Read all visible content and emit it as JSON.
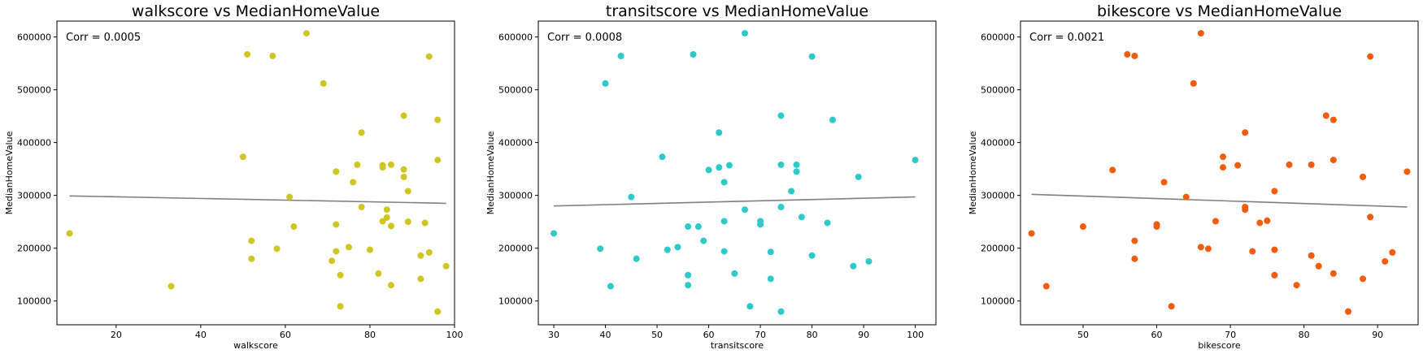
{
  "chart_data": [
    {
      "type": "scatter",
      "title": "walkscore vs MedianHomeValue",
      "xlabel": "walkscore",
      "ylabel": "MedianHomeValue",
      "annotation": "Corr = 0.0005",
      "xlim": [
        6,
        100
      ],
      "ylim": [
        55000,
        630000
      ],
      "xticks": [
        20,
        40,
        60,
        80,
        100
      ],
      "yticks": [
        100000,
        200000,
        300000,
        400000,
        500000,
        600000
      ],
      "point_color": "#cfc623",
      "line_color": "#808080",
      "trend": {
        "x": [
          9,
          98
        ],
        "y": [
          299000,
          285000
        ]
      },
      "points": [
        {
          "x": 9,
          "y": 228000
        },
        {
          "x": 33,
          "y": 128000
        },
        {
          "x": 50,
          "y": 373000
        },
        {
          "x": 51,
          "y": 567000
        },
        {
          "x": 52,
          "y": 214000
        },
        {
          "x": 52,
          "y": 180000
        },
        {
          "x": 57,
          "y": 564000
        },
        {
          "x": 58,
          "y": 199000
        },
        {
          "x": 61,
          "y": 297000
        },
        {
          "x": 62,
          "y": 241000
        },
        {
          "x": 65,
          "y": 607000
        },
        {
          "x": 69,
          "y": 512000
        },
        {
          "x": 71,
          "y": 176000
        },
        {
          "x": 72,
          "y": 345000
        },
        {
          "x": 72,
          "y": 245000
        },
        {
          "x": 72,
          "y": 194000
        },
        {
          "x": 73,
          "y": 149000
        },
        {
          "x": 73,
          "y": 90000
        },
        {
          "x": 75,
          "y": 202000
        },
        {
          "x": 76,
          "y": 325000
        },
        {
          "x": 77,
          "y": 358000
        },
        {
          "x": 78,
          "y": 419000
        },
        {
          "x": 78,
          "y": 278000
        },
        {
          "x": 80,
          "y": 197000
        },
        {
          "x": 82,
          "y": 152000
        },
        {
          "x": 83,
          "y": 357000
        },
        {
          "x": 83,
          "y": 353000
        },
        {
          "x": 83,
          "y": 251000
        },
        {
          "x": 84,
          "y": 273000
        },
        {
          "x": 84,
          "y": 258000
        },
        {
          "x": 85,
          "y": 358000
        },
        {
          "x": 85,
          "y": 242000
        },
        {
          "x": 85,
          "y": 130000
        },
        {
          "x": 88,
          "y": 451000
        },
        {
          "x": 88,
          "y": 349000
        },
        {
          "x": 88,
          "y": 335000
        },
        {
          "x": 89,
          "y": 308000
        },
        {
          "x": 89,
          "y": 250000
        },
        {
          "x": 92,
          "y": 186000
        },
        {
          "x": 92,
          "y": 142000
        },
        {
          "x": 93,
          "y": 248000
        },
        {
          "x": 94,
          "y": 563000
        },
        {
          "x": 94,
          "y": 192000
        },
        {
          "x": 96,
          "y": 443000
        },
        {
          "x": 96,
          "y": 367000
        },
        {
          "x": 96,
          "y": 80000
        },
        {
          "x": 98,
          "y": 166000
        }
      ]
    },
    {
      "type": "scatter",
      "title": "transitscore vs MedianHomeValue",
      "xlabel": "transitscore",
      "ylabel": "MedianHomeValue",
      "annotation": "Corr = 0.0008",
      "xlim": [
        27,
        104
      ],
      "ylim": [
        55000,
        630000
      ],
      "xticks": [
        30,
        40,
        50,
        60,
        70,
        80,
        90,
        100
      ],
      "yticks": [
        100000,
        200000,
        300000,
        400000,
        500000,
        600000
      ],
      "point_color": "#2ec9c9",
      "line_color": "#808080",
      "trend": {
        "x": [
          30,
          100
        ],
        "y": [
          280000,
          297000
        ]
      },
      "points": [
        {
          "x": 30,
          "y": 228000
        },
        {
          "x": 39,
          "y": 199000
        },
        {
          "x": 40,
          "y": 512000
        },
        {
          "x": 41,
          "y": 128000
        },
        {
          "x": 43,
          "y": 564000
        },
        {
          "x": 45,
          "y": 297000
        },
        {
          "x": 46,
          "y": 180000
        },
        {
          "x": 51,
          "y": 373000
        },
        {
          "x": 52,
          "y": 197000
        },
        {
          "x": 54,
          "y": 202000
        },
        {
          "x": 56,
          "y": 241000
        },
        {
          "x": 56,
          "y": 149000
        },
        {
          "x": 56,
          "y": 130000
        },
        {
          "x": 57,
          "y": 567000
        },
        {
          "x": 58,
          "y": 241000
        },
        {
          "x": 59,
          "y": 214000
        },
        {
          "x": 60,
          "y": 348000
        },
        {
          "x": 62,
          "y": 419000
        },
        {
          "x": 62,
          "y": 353000
        },
        {
          "x": 63,
          "y": 325000
        },
        {
          "x": 63,
          "y": 251000
        },
        {
          "x": 63,
          "y": 194000
        },
        {
          "x": 64,
          "y": 357000
        },
        {
          "x": 65,
          "y": 152000
        },
        {
          "x": 67,
          "y": 607000
        },
        {
          "x": 67,
          "y": 273000
        },
        {
          "x": 68,
          "y": 90000
        },
        {
          "x": 70,
          "y": 251000
        },
        {
          "x": 70,
          "y": 245000
        },
        {
          "x": 72,
          "y": 193000
        },
        {
          "x": 72,
          "y": 142000
        },
        {
          "x": 74,
          "y": 451000
        },
        {
          "x": 74,
          "y": 358000
        },
        {
          "x": 74,
          "y": 278000
        },
        {
          "x": 74,
          "y": 80000
        },
        {
          "x": 76,
          "y": 308000
        },
        {
          "x": 77,
          "y": 358000
        },
        {
          "x": 77,
          "y": 345000
        },
        {
          "x": 78,
          "y": 259000
        },
        {
          "x": 80,
          "y": 563000
        },
        {
          "x": 80,
          "y": 186000
        },
        {
          "x": 83,
          "y": 248000
        },
        {
          "x": 84,
          "y": 443000
        },
        {
          "x": 88,
          "y": 166000
        },
        {
          "x": 89,
          "y": 335000
        },
        {
          "x": 91,
          "y": 175000
        },
        {
          "x": 100,
          "y": 367000
        }
      ]
    },
    {
      "type": "scatter",
      "title": "bikescore vs MedianHomeValue",
      "xlabel": "bikescore",
      "ylabel": "MedianHomeValue",
      "annotation": "Corr = 0.0021",
      "xlim": [
        41.5,
        95.5
      ],
      "ylim": [
        55000,
        630000
      ],
      "xticks": [
        50,
        60,
        70,
        80,
        90
      ],
      "yticks": [
        100000,
        200000,
        300000,
        400000,
        500000,
        600000
      ],
      "point_color": "#f25c0c",
      "line_color": "#808080",
      "trend": {
        "x": [
          43,
          94
        ],
        "y": [
          302000,
          278000
        ]
      },
      "points": [
        {
          "x": 43,
          "y": 228000
        },
        {
          "x": 45,
          "y": 128000
        },
        {
          "x": 50,
          "y": 241000
        },
        {
          "x": 54,
          "y": 348000
        },
        {
          "x": 56,
          "y": 567000
        },
        {
          "x": 57,
          "y": 564000
        },
        {
          "x": 57,
          "y": 214000
        },
        {
          "x": 57,
          "y": 180000
        },
        {
          "x": 60,
          "y": 245000
        },
        {
          "x": 60,
          "y": 241000
        },
        {
          "x": 61,
          "y": 325000
        },
        {
          "x": 62,
          "y": 90000
        },
        {
          "x": 64,
          "y": 297000
        },
        {
          "x": 65,
          "y": 512000
        },
        {
          "x": 66,
          "y": 607000
        },
        {
          "x": 66,
          "y": 202000
        },
        {
          "x": 67,
          "y": 199000
        },
        {
          "x": 68,
          "y": 251000
        },
        {
          "x": 69,
          "y": 373000
        },
        {
          "x": 69,
          "y": 353000
        },
        {
          "x": 71,
          "y": 357000
        },
        {
          "x": 72,
          "y": 419000
        },
        {
          "x": 72,
          "y": 278000
        },
        {
          "x": 72,
          "y": 273000
        },
        {
          "x": 73,
          "y": 194000
        },
        {
          "x": 74,
          "y": 248000
        },
        {
          "x": 75,
          "y": 252000
        },
        {
          "x": 76,
          "y": 308000
        },
        {
          "x": 76,
          "y": 197000
        },
        {
          "x": 76,
          "y": 149000
        },
        {
          "x": 78,
          "y": 358000
        },
        {
          "x": 79,
          "y": 130000
        },
        {
          "x": 81,
          "y": 358000
        },
        {
          "x": 81,
          "y": 186000
        },
        {
          "x": 82,
          "y": 166000
        },
        {
          "x": 83,
          "y": 451000
        },
        {
          "x": 84,
          "y": 443000
        },
        {
          "x": 84,
          "y": 367000
        },
        {
          "x": 84,
          "y": 152000
        },
        {
          "x": 86,
          "y": 80000
        },
        {
          "x": 88,
          "y": 335000
        },
        {
          "x": 88,
          "y": 142000
        },
        {
          "x": 89,
          "y": 563000
        },
        {
          "x": 89,
          "y": 259000
        },
        {
          "x": 91,
          "y": 175000
        },
        {
          "x": 92,
          "y": 192000
        },
        {
          "x": 94,
          "y": 345000
        }
      ]
    }
  ]
}
